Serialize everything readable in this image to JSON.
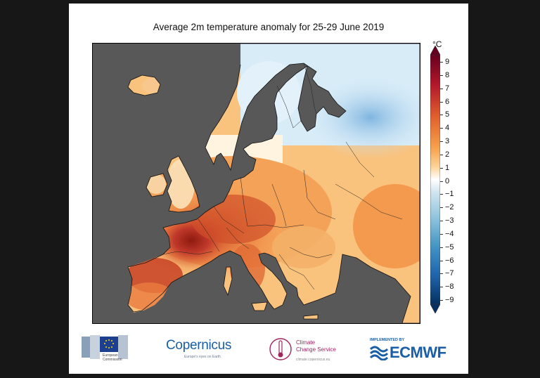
{
  "title": "Average 2m temperature anomaly for 25-29 June 2019",
  "colorbar": {
    "unit": "°C",
    "ticks": [
      "9",
      "8",
      "7",
      "6",
      "5",
      "4",
      "3",
      "2",
      "1",
      "0",
      "−1",
      "−2",
      "−3",
      "−4",
      "−5",
      "−6",
      "−7",
      "−8",
      "−9"
    ],
    "colors": [
      "#67001f",
      "#b2182b",
      "#d6604d",
      "#f4a582",
      "#fddbc7",
      "#f7f7f7",
      "#d1e5f0",
      "#92c5de",
      "#4393c3",
      "#2166ac",
      "#053061"
    ]
  },
  "logos": {
    "eu_text1": "European",
    "eu_text2": "Commission",
    "copernicus": "Copernicus",
    "copernicus_tag": "Europe's eyes on Earth",
    "c3s_line1": "Climate",
    "c3s_line2": "Change Service",
    "c3s_url": "climate.copernicus.eu",
    "ecmwf_pre": "IMPLEMENTED BY",
    "ecmwf": "ECMWF"
  }
}
